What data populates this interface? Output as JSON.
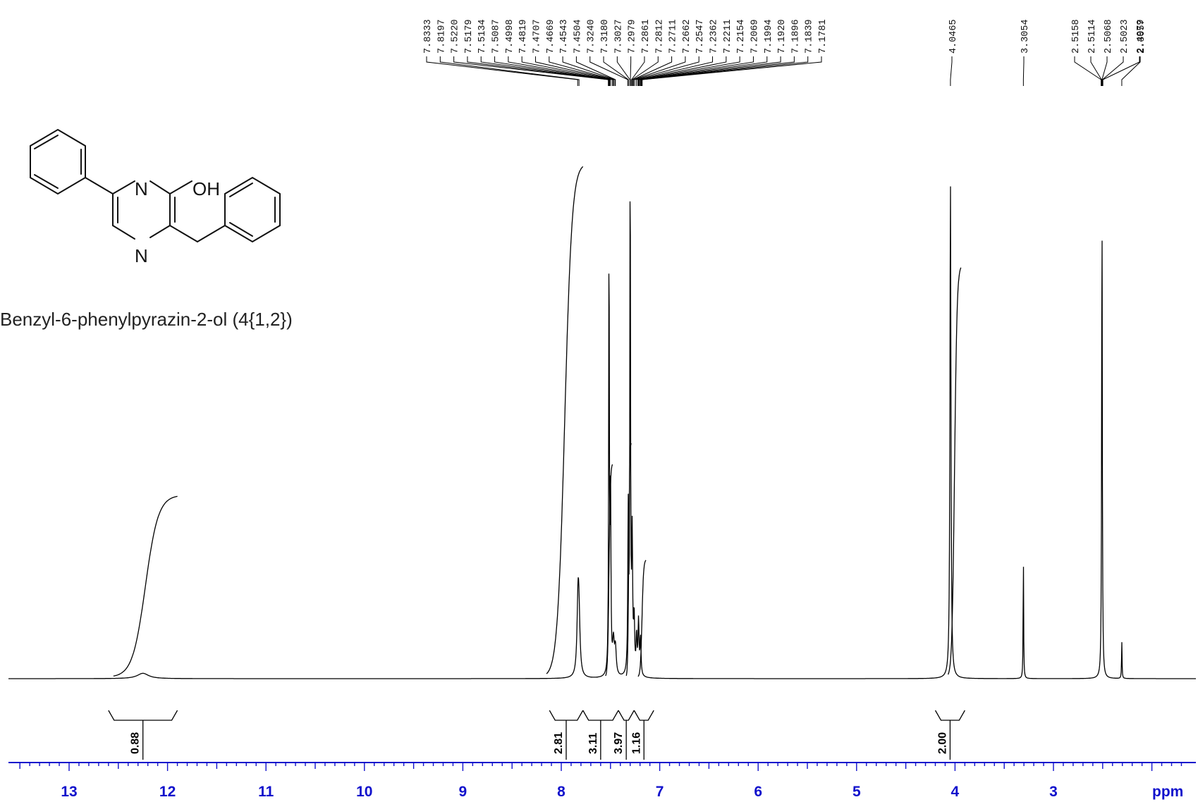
{
  "compound": {
    "name": "Benzyl-6-phenylpyrazin-2-ol (4{1,2})",
    "atoms": {
      "n_top": "N",
      "n_bottom": "N",
      "oh": "OH"
    }
  },
  "colors": {
    "spectrum": "#000000",
    "axis": "#1010cc",
    "text": "#222222"
  },
  "chart_data": {
    "type": "line",
    "title": "",
    "xlabel": "ppm",
    "ylabel": "",
    "x_reversed": true,
    "xlim": [
      13.6,
      1.6
    ],
    "x_ticks": [
      13,
      12,
      11,
      10,
      9,
      8,
      7,
      6,
      5,
      4,
      3
    ],
    "tick_labels": [
      "13",
      "12",
      "11",
      "10",
      "9",
      "8",
      "7",
      "6",
      "5",
      "4",
      "3"
    ],
    "peak_groups": [
      {
        "labels": [
          "7.8333",
          "7.8197",
          "7.5220",
          "7.5179",
          "7.5134",
          "7.5087",
          "7.4998",
          "7.4819",
          "7.4707",
          "7.4669",
          "7.4543",
          "7.4504",
          "7.3240",
          "7.3180",
          "7.3027",
          "7.2979",
          "7.2861",
          "7.2812",
          "7.2711",
          "7.2662",
          "7.2547",
          "7.2362",
          "7.2211",
          "7.2154",
          "7.2069",
          "7.1994",
          "7.1920",
          "7.1896",
          "7.1839",
          "7.1781"
        ]
      },
      {
        "labels": [
          "4.0465"
        ]
      },
      {
        "labels": [
          "3.3054"
        ]
      },
      {
        "labels": [
          "2.5158",
          "2.5114",
          "2.5068",
          "2.5023",
          "2.4979"
        ]
      },
      {
        "labels": [
          "2.3057"
        ]
      }
    ],
    "peaks": [
      {
        "ppm": 12.25,
        "height": 0.01,
        "width": 0.07
      },
      {
        "ppm": 7.83,
        "height": 0.13,
        "width": 0.012
      },
      {
        "ppm": 7.82,
        "height": 0.09,
        "width": 0.012
      },
      {
        "ppm": 7.515,
        "height": 0.82,
        "width": 0.004
      },
      {
        "ppm": 7.5,
        "height": 0.35,
        "width": 0.005
      },
      {
        "ppm": 7.47,
        "height": 0.06,
        "width": 0.01
      },
      {
        "ppm": 7.45,
        "height": 0.05,
        "width": 0.01
      },
      {
        "ppm": 7.32,
        "height": 0.3,
        "width": 0.005
      },
      {
        "ppm": 7.3,
        "height": 0.98,
        "width": 0.004
      },
      {
        "ppm": 7.28,
        "height": 0.25,
        "width": 0.006
      },
      {
        "ppm": 7.26,
        "height": 0.1,
        "width": 0.006
      },
      {
        "ppm": 7.235,
        "height": 0.07,
        "width": 0.006
      },
      {
        "ppm": 7.215,
        "height": 0.1,
        "width": 0.006
      },
      {
        "ppm": 7.195,
        "height": 0.07,
        "width": 0.006
      },
      {
        "ppm": 4.0465,
        "height": 0.93,
        "width": 0.006
      },
      {
        "ppm": 3.3054,
        "height": 0.23,
        "width": 0.003
      },
      {
        "ppm": 2.507,
        "height": 0.9,
        "width": 0.004
      },
      {
        "ppm": 2.3057,
        "height": 0.07,
        "width": 0.003
      }
    ],
    "integral_curves": [
      {
        "from": 12.55,
        "to": 11.9,
        "rise": 0.34
      },
      {
        "from": 8.15,
        "to": 7.78,
        "rise": 0.96
      },
      {
        "from": 7.55,
        "to": 7.48,
        "rise": 0.4
      },
      {
        "from": 7.34,
        "to": 7.29,
        "rise": 0.44
      },
      {
        "from": 7.22,
        "to": 7.14,
        "rise": 0.22
      },
      {
        "from": 4.07,
        "to": 3.94,
        "rise": 0.77
      }
    ],
    "integrals": [
      {
        "from": 12.6,
        "to": 11.9,
        "value": "0.88"
      },
      {
        "from": 8.12,
        "to": 7.78,
        "value": "2.81"
      },
      {
        "from": 7.78,
        "to": 7.42,
        "value": "3.11"
      },
      {
        "from": 7.42,
        "to": 7.26,
        "value": "3.97"
      },
      {
        "from": 7.26,
        "to": 7.06,
        "value": "1.16"
      },
      {
        "from": 4.2,
        "to": 3.9,
        "value": "2.00"
      }
    ]
  }
}
